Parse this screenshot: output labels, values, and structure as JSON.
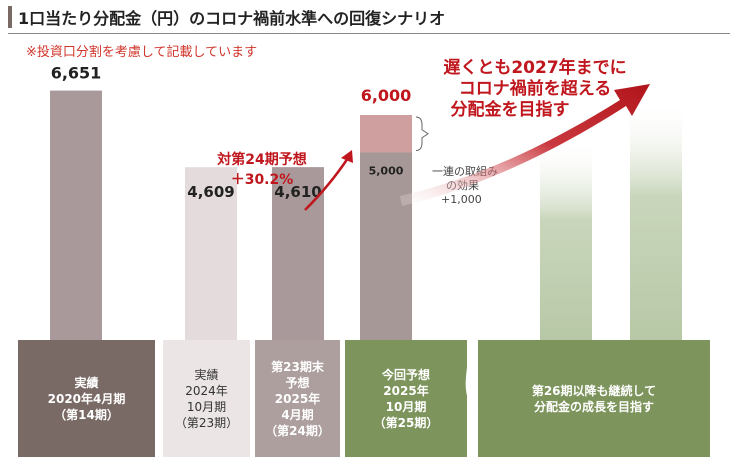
{
  "title": "1口当たり分配金（円）のコロナ禍前水準への回復シナリオ",
  "subtitle": "※投資口分割を考慮して記載しています",
  "colors": {
    "bar_actual_2020": "#a9999a",
    "bar_actual": "#e4dcdc",
    "bar_forecast": "#a69897",
    "bar_effect": "#cf9f9f",
    "bar_future": "#b7c8a6",
    "label_dark": "#7a6a66",
    "label_light": "#ebe5e5",
    "label_forecast": "#ac9f9e",
    "label_green": "#7d955c",
    "accent_red": "#c0161d"
  },
  "chart_data": {
    "type": "bar",
    "categories": [
      "実績 2020年4月期 （第14期）",
      "実績 2024年 10月期 （第23期）",
      "第23期末 予想 2025年 4月期 （第24期）",
      "今回予想 2025年 10月期 （第25期）",
      "第26期以降も継続して 分配金の成長を目指す"
    ],
    "series": [
      {
        "values": [
          6651,
          4609,
          4610,
          5000,
          null
        ]
      },
      {
        "values": [
          null,
          null,
          null,
          1000,
          null
        ]
      }
    ],
    "data_labels": [
      "6,651",
      "4,609",
      "4,610",
      "5,000",
      "6,000"
    ],
    "annotations": {
      "growth_label_line1": "対第24期予想",
      "growth_label_line2": "＋30.2%",
      "effect_line1": "一連の取組み",
      "effect_line2": "の効果",
      "effect_line3": "+1,000",
      "goal_line1": "遅くとも2027年までに",
      "goal_line2": "コロナ禍前を超える",
      "goal_line3": "分配金を目指す"
    },
    "ylim": [
      0,
      7600
    ]
  },
  "x_labels": {
    "cat1": [
      "実績",
      "2020年4月期",
      "（第14期）"
    ],
    "cat2": [
      "実績",
      "2024年",
      "10月期",
      "（第23期）"
    ],
    "cat3": [
      "第23期末",
      "予想",
      "2025年",
      "4月期",
      "（第24期）"
    ],
    "cat4": [
      "今回予想",
      "2025年",
      "10月期",
      "（第25期）"
    ],
    "cat5": [
      "第26期以降も継続して",
      "分配金の成長を目指す"
    ]
  }
}
